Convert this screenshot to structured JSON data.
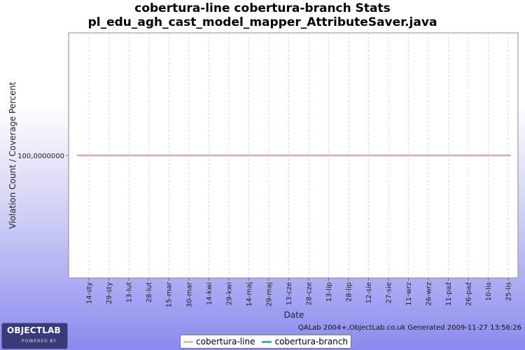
{
  "chart_data": {
    "type": "line",
    "title": "cobertura-line cobertura-branch  Stats",
    "subtitle": "pl_edu_agh_cast_model_mapper_AttributeSaver.java",
    "xlabel": "Date",
    "ylabel": "Violation Count / Coverage Percent",
    "y_tick_label": "100,0000000",
    "x_tick_labels": [
      "14-sty",
      "29-sty",
      "13-lut",
      "28-lut",
      "15-mar",
      "30-mar",
      "14-kwi",
      "29-kwi",
      "14-maj",
      "29-maj",
      "13-cze",
      "28-cze",
      "13-lip",
      "28-lip",
      "12-sie",
      "27-sie",
      "11-wrz",
      "26-wrz",
      "11-paź",
      "26-paź",
      "10-lis",
      "25-lis"
    ],
    "x_range": [
      "2009-01-05",
      "2009-11-27"
    ],
    "ylim": [
      0,
      200
    ],
    "grid": true,
    "legend_position": "bottom",
    "series": [
      {
        "name": "cobertura-line",
        "color": "#f4b6be",
        "x": [
          "2009-01-05",
          "2009-11-27"
        ],
        "values": [
          100,
          100
        ]
      },
      {
        "name": "cobertura-branch",
        "color": "#30b8c8",
        "x": [
          "2009-01-05",
          "2009-11-27"
        ],
        "values": [
          100,
          100
        ]
      }
    ]
  },
  "footer": "QALab 2004+,ObjectLab.co.uk Generated 2009-11-27 13:56:26",
  "logo": {
    "brand": "OBJECTLAB",
    "sub": "POWERED BY"
  }
}
